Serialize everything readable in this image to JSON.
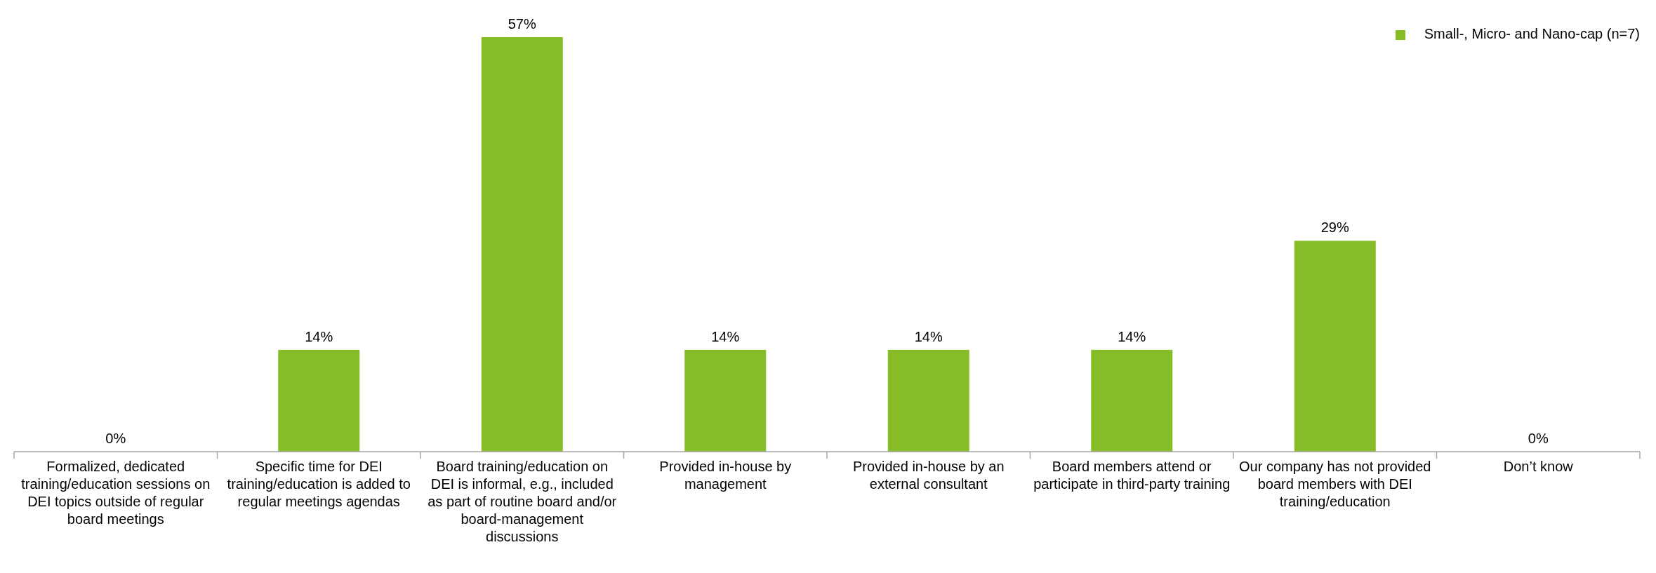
{
  "chart_data": {
    "type": "bar",
    "categories": [
      "Formalized, dedicated training/education sessions on DEI topics outside of regular board meetings",
      "Specific time for DEI training/education is added to regular meetings agendas",
      "Board training/education on DEI is informal, e.g., included as part of routine board and/or board-management discussions",
      "Provided in-house by management",
      "Provided in-house by an external consultant",
      "Board members attend or participate in third-party training",
      "Our company has not provided board members with DEI training/education",
      "Don’t know"
    ],
    "series": [
      {
        "name": "Small-, Micro- and Nano-cap (n=7)",
        "color": "#86bc25",
        "values": [
          0,
          14,
          57,
          14,
          14,
          14,
          29,
          0
        ],
        "value_labels": [
          "0%",
          "14%",
          "57%",
          "14%",
          "14%",
          "14%",
          "29%",
          "0%"
        ]
      }
    ],
    "legend": "top right"
  }
}
